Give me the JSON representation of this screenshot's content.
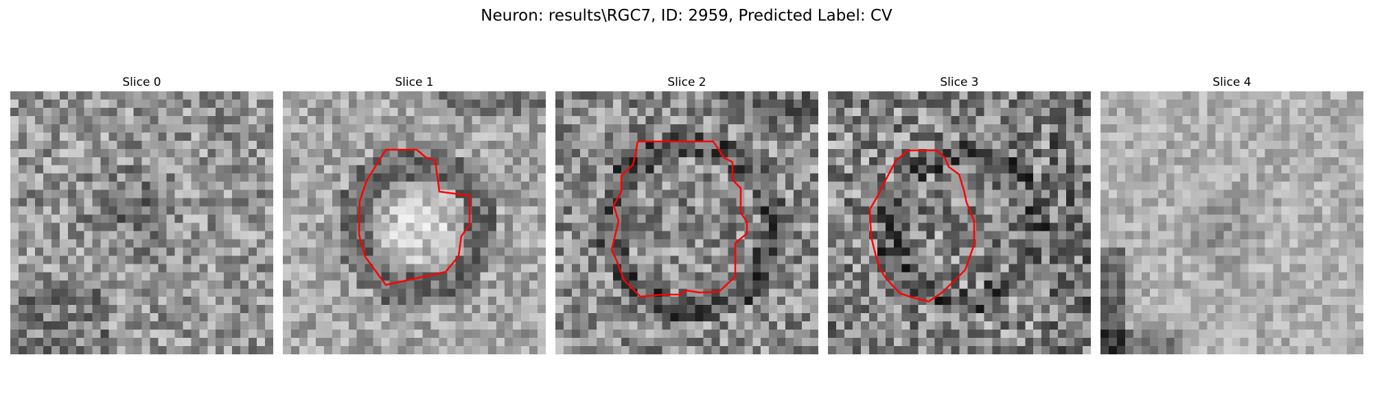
{
  "figure": {
    "title": "Neuron: results\\RGC7, ID: 2959, Predicted Label: CV"
  },
  "panels": [
    {
      "title": "Slice 0",
      "has_contour": false
    },
    {
      "title": "Slice 1",
      "has_contour": true
    },
    {
      "title": "Slice 2",
      "has_contour": true
    },
    {
      "title": "Slice 3",
      "has_contour": true
    },
    {
      "title": "Slice 4",
      "has_contour": false
    }
  ],
  "image": {
    "colormap": "gray",
    "contour_color": "#ff0000",
    "description_grid": "32x32 noisy grayscale microscopy slices"
  }
}
